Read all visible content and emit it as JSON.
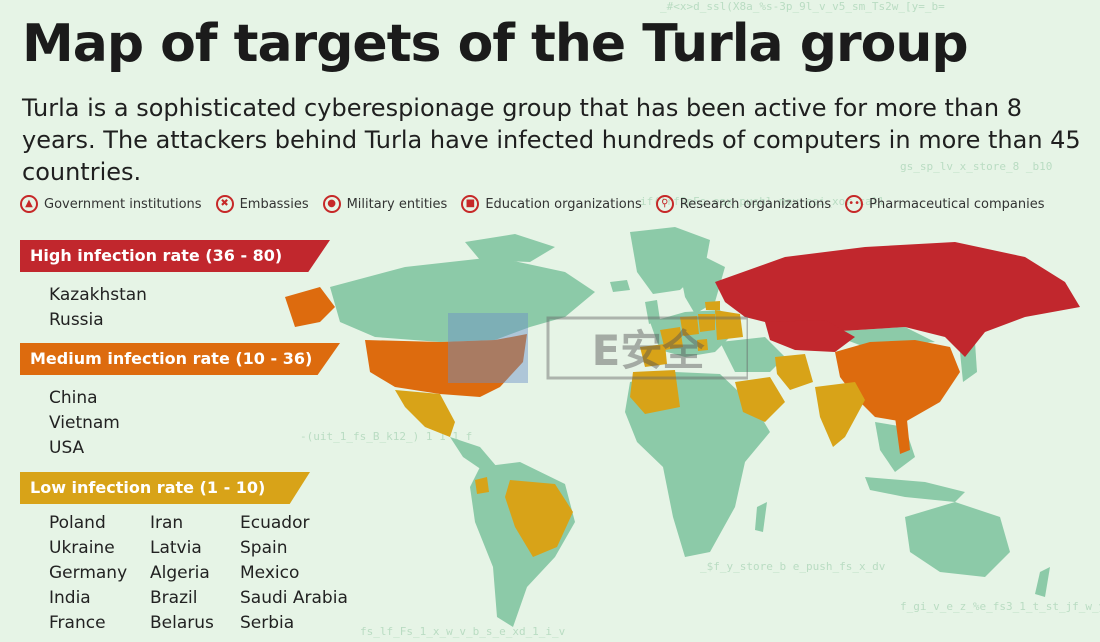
{
  "title": "Map of targets of the Turla group",
  "subtitle": "Turla is a sophisticated cyberespionage group that has been active for more than 8 years. The attackers behind Turla have infected hundreds of computers in more than 45 countries.",
  "legend": [
    {
      "icon": "government-icon",
      "label": "Government institutions"
    },
    {
      "icon": "embassies-icon",
      "label": "Embassies"
    },
    {
      "icon": "military-icon",
      "label": "Military entities"
    },
    {
      "icon": "education-icon",
      "label": "Education organizations"
    },
    {
      "icon": "research-icon",
      "label": "Research organizations"
    },
    {
      "icon": "pharmaceutical-icon",
      "label": "Pharmaceutical companies"
    }
  ],
  "categories": {
    "high": {
      "label": "High infection rate (36 - 80)",
      "color": "#c1272d",
      "countries": [
        "Kazakhstan",
        "Russia"
      ]
    },
    "medium": {
      "label": "Medium infection rate (10 - 36)",
      "color": "#dd6b0e",
      "countries": [
        "China",
        "Vietnam",
        "USA"
      ]
    },
    "low": {
      "label": "Low infection rate (1 - 10)",
      "color": "#d8a318",
      "columns": [
        [
          "Poland",
          "Ukraine",
          "Germany",
          "India",
          "France"
        ],
        [
          "Iran",
          "Latvia",
          "Algeria",
          "Brazil",
          "Belarus"
        ],
        [
          "Ecuador",
          "Spain",
          "Mexico",
          "Saudi Arabia",
          "Serbia"
        ]
      ]
    }
  },
  "map_colors": {
    "land": "#8ccaa8",
    "high": "#c1272d",
    "medium": "#dd6b0e",
    "low": "#d8a318"
  },
  "watermark": "E安全"
}
